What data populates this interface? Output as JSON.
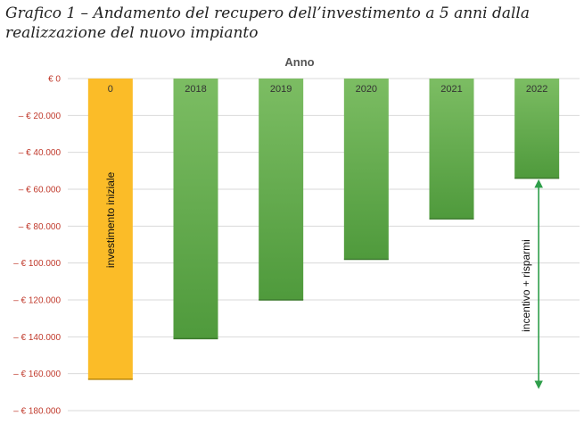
{
  "caption": "Grafico 1 – Andamento del recupero dell’investimento a 5 anni dalla realizzazione del nuovo impianto",
  "chart_data": {
    "type": "bar",
    "xlabel": "Anno",
    "ylabel": "",
    "ylim": [
      -180000,
      0
    ],
    "yticks": [
      0,
      -20000,
      -40000,
      -60000,
      -80000,
      -100000,
      -120000,
      -140000,
      -160000,
      -180000
    ],
    "ytick_labels": [
      "€ 0",
      "– € 20.000",
      "– € 40.000",
      "– € 60.000",
      "– € 80.000",
      "– € 100.000",
      "– € 120.000",
      "– € 140.000",
      "– € 160.000",
      "– € 180.000"
    ],
    "categories": [
      "0",
      "2018",
      "2019",
      "2020",
      "2021",
      "2022"
    ],
    "values": [
      -163000,
      -141000,
      -120000,
      -98000,
      -76000,
      -54000
    ],
    "grid": true,
    "colors": {
      "first": "#fbbc28",
      "others": "#5fa84a",
      "arrow": "#2e9e4a",
      "ylabels": "#c0392b"
    },
    "annotations": {
      "first_bar": "investimento iniziale",
      "arrow": "incentivo + risparmi"
    }
  }
}
